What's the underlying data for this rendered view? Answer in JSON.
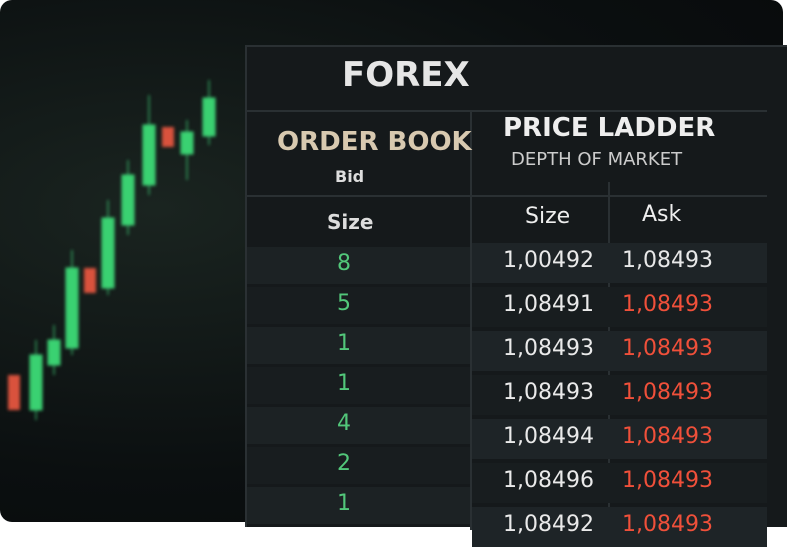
{
  "header": {
    "title": "FOREX"
  },
  "order_book": {
    "title": "ORDER BOOK",
    "subtitle": "Bid",
    "column": "Size",
    "rows": [
      "8",
      "5",
      "1",
      "1",
      "4",
      "2",
      "1"
    ]
  },
  "price_ladder": {
    "title": "PRICE LADDER",
    "subtitle": "DEPTH OF MARKET",
    "columns": [
      "Size",
      "Ask"
    ],
    "rows": [
      {
        "size": "1,00492",
        "ask": "1,08493",
        "ask_color": "#e8e8e8"
      },
      {
        "size": "1,08491",
        "ask": "1,08493",
        "ask_color": "#f0503a"
      },
      {
        "size": "1,08493",
        "ask": "1,08493",
        "ask_color": "#f0503a"
      },
      {
        "size": "1,08493",
        "ask": "1,08493",
        "ask_color": "#f0503a"
      },
      {
        "size": "1,08494",
        "ask": "1,08493",
        "ask_color": "#f0503a"
      },
      {
        "size": "1,08496",
        "ask": "1,08493",
        "ask_color": "#f0503a"
      },
      {
        "size": "1,08492",
        "ask": "1,08493",
        "ask_color": "#f0503a"
      }
    ]
  }
}
